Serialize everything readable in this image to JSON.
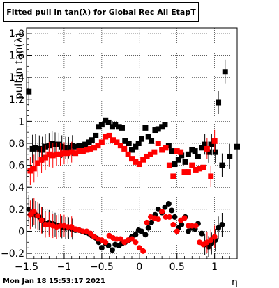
{
  "chart_data": {
    "type": "scatter",
    "title": "Fitted pull in tan(λ) for Global Rec All EtapT",
    "xlabel": "η",
    "ylabel": "pull in tan(λ)",
    "xlim": [
      -1.5,
      1.3
    ],
    "ylim": [
      -0.25,
      1.85
    ],
    "xticks": [
      -1.5,
      -1,
      -0.5,
      0,
      0.5,
      1
    ],
    "xtick_labels": [
      "−1.5",
      "−1",
      "−0.5",
      "0",
      "0.5",
      "1"
    ],
    "yticks": [
      -0.2,
      0,
      0.2,
      0.4,
      0.6,
      0.8,
      1,
      1.2,
      1.4,
      1.6,
      1.8
    ],
    "ytick_labels": [
      "−0.2",
      "0",
      "0.2",
      "0.4",
      "0.6",
      "0.8",
      "1",
      "1.2",
      "1.4",
      "1.6",
      "1.8"
    ],
    "grid": true,
    "colors": {
      "black": "#000000",
      "red": "#ff0000"
    },
    "series": [
      {
        "marker": "square",
        "color": "#000000",
        "x": [
          -1.47,
          -1.42,
          -1.38,
          -1.33,
          -1.29,
          -1.25,
          -1.2,
          -1.16,
          -1.12,
          -1.07,
          -1.03,
          -0.98,
          -0.94,
          -0.89,
          -0.85,
          -0.8,
          -0.76,
          -0.72,
          -0.67,
          -0.63,
          -0.58,
          -0.54,
          -0.5,
          -0.45,
          -0.41,
          -0.36,
          -0.32,
          -0.27,
          -0.23,
          -0.19,
          -0.14,
          -0.1,
          -0.05,
          -0.01,
          0.03,
          0.08,
          0.12,
          0.16,
          0.21,
          0.25,
          0.3,
          0.34,
          0.39,
          0.43,
          0.47,
          0.52,
          0.56,
          0.61,
          0.65,
          0.7,
          0.74,
          0.78,
          0.83,
          0.87,
          0.92,
          0.96,
          1.01,
          1.05,
          1.1,
          1.14,
          1.2,
          1.3
        ],
        "y": [
          1.27,
          0.75,
          0.76,
          0.75,
          0.74,
          0.77,
          0.78,
          0.8,
          0.79,
          0.79,
          0.77,
          0.76,
          0.76,
          0.78,
          0.77,
          0.78,
          0.78,
          0.79,
          0.81,
          0.83,
          0.87,
          0.95,
          0.97,
          1.01,
          0.99,
          0.95,
          0.97,
          0.95,
          0.94,
          0.82,
          0.8,
          0.74,
          0.77,
          0.8,
          0.84,
          0.94,
          0.86,
          0.82,
          0.92,
          0.93,
          0.95,
          0.97,
          0.78,
          0.73,
          0.61,
          0.65,
          0.69,
          0.63,
          0.7,
          0.74,
          0.73,
          0.68,
          0.76,
          0.79,
          0.72,
          0.79,
          0.72,
          1.17,
          0.6,
          1.45,
          0.68,
          0.77
        ]
      },
      {
        "marker": "square",
        "color": "#ff0000",
        "x": [
          -1.45,
          -1.4,
          -1.35,
          -1.3,
          -1.25,
          -1.2,
          -1.15,
          -1.1,
          -1.05,
          -1,
          -0.95,
          -0.9,
          -0.85,
          -0.8,
          -0.75,
          -0.7,
          -0.65,
          -0.6,
          -0.55,
          -0.5,
          -0.45,
          -0.4,
          -0.35,
          -0.3,
          -0.25,
          -0.2,
          -0.15,
          -0.1,
          -0.05,
          0,
          0.05,
          0.1,
          0.15,
          0.2,
          0.25,
          0.3,
          0.35,
          0.4,
          0.45,
          0.5,
          0.55,
          0.6,
          0.65,
          0.7,
          0.75,
          0.8,
          0.85,
          0.9,
          0.95,
          1
        ],
        "y": [
          0.55,
          0.57,
          0.62,
          0.65,
          0.67,
          0.7,
          0.69,
          0.7,
          0.7,
          0.71,
          0.71,
          0.72,
          0.71,
          0.73,
          0.73,
          0.74,
          0.75,
          0.76,
          0.78,
          0.81,
          0.86,
          0.87,
          0.83,
          0.81,
          0.78,
          0.75,
          0.7,
          0.66,
          0.63,
          0.61,
          0.65,
          0.68,
          0.7,
          0.72,
          0.8,
          0.74,
          0.76,
          0.6,
          0.5,
          0.73,
          0.72,
          0.54,
          0.54,
          0.6,
          0.56,
          0.57,
          0.58,
          0.75,
          0.5,
          0.82
        ]
      },
      {
        "marker": "circle",
        "color": "#000000",
        "x": [
          -1.47,
          -1.42,
          -1.38,
          -1.33,
          -1.29,
          -1.25,
          -1.2,
          -1.16,
          -1.12,
          -1.07,
          -1.03,
          -0.98,
          -0.94,
          -0.89,
          -0.85,
          -0.8,
          -0.76,
          -0.72,
          -0.67,
          -0.63,
          -0.58,
          -0.54,
          -0.5,
          -0.45,
          -0.41,
          -0.36,
          -0.32,
          -0.27,
          -0.23,
          -0.19,
          -0.14,
          -0.1,
          -0.05,
          -0.01,
          0.03,
          0.08,
          0.12,
          0.16,
          0.21,
          0.25,
          0.3,
          0.34,
          0.39,
          0.43,
          0.47,
          0.52,
          0.56,
          0.61,
          0.65,
          0.7,
          0.74,
          0.78,
          0.83,
          0.87,
          0.92,
          0.96,
          1.01,
          1.05,
          1.1
        ],
        "y": [
          0.2,
          0.17,
          0.15,
          0.13,
          0.1,
          0.07,
          0.08,
          0.07,
          0.06,
          0.05,
          0.04,
          0.03,
          0.03,
          0.02,
          0.01,
          0.01,
          0.0,
          -0.01,
          -0.02,
          -0.04,
          -0.06,
          -0.1,
          -0.15,
          -0.11,
          -0.13,
          -0.17,
          -0.12,
          -0.13,
          -0.11,
          -0.1,
          -0.08,
          -0.05,
          -0.03,
          0.01,
          0.0,
          -0.03,
          0.03,
          0.08,
          0.15,
          0.2,
          0.17,
          0.22,
          0.25,
          0.19,
          0.13,
          0.03,
          0.06,
          0.13,
          0.0,
          0.03,
          0.02,
          0.07,
          -0.02,
          -0.12,
          -0.14,
          -0.11,
          -0.08,
          0.03,
          0.06
        ]
      },
      {
        "marker": "circle",
        "color": "#ff0000",
        "x": [
          -1.45,
          -1.4,
          -1.35,
          -1.3,
          -1.25,
          -1.2,
          -1.15,
          -1.1,
          -1.05,
          -1,
          -0.95,
          -0.9,
          -0.85,
          -0.8,
          -0.75,
          -0.7,
          -0.65,
          -0.6,
          -0.55,
          -0.5,
          -0.45,
          -0.4,
          -0.35,
          -0.3,
          -0.25,
          -0.2,
          -0.15,
          -0.1,
          -0.05,
          0,
          0.05,
          0.1,
          0.15,
          0.2,
          0.25,
          0.3,
          0.35,
          0.4,
          0.45,
          0.5,
          0.55,
          0.6,
          0.65,
          0.7,
          0.75,
          0.8,
          0.85,
          0.9,
          0.95,
          1
        ],
        "y": [
          0.15,
          0.18,
          0.14,
          0.1,
          0.06,
          0.06,
          0.05,
          0.04,
          0.05,
          0.05,
          0.04,
          0.04,
          0.02,
          0.01,
          0.0,
          0.0,
          -0.02,
          -0.05,
          -0.07,
          -0.08,
          -0.1,
          -0.04,
          -0.06,
          -0.07,
          -0.07,
          -0.1,
          -0.08,
          -0.07,
          -0.1,
          -0.15,
          -0.18,
          0.08,
          0.13,
          0.12,
          0.11,
          0.18,
          0.13,
          0.13,
          0.06,
          0.0,
          0.1,
          0.12,
          0.05,
          0.05,
          0.05,
          -0.1,
          -0.12,
          -0.1,
          -0.08,
          -0.05
        ]
      }
    ]
  },
  "footer": {
    "timestamp": "Mon Jan 18 15:53:17 2021"
  }
}
